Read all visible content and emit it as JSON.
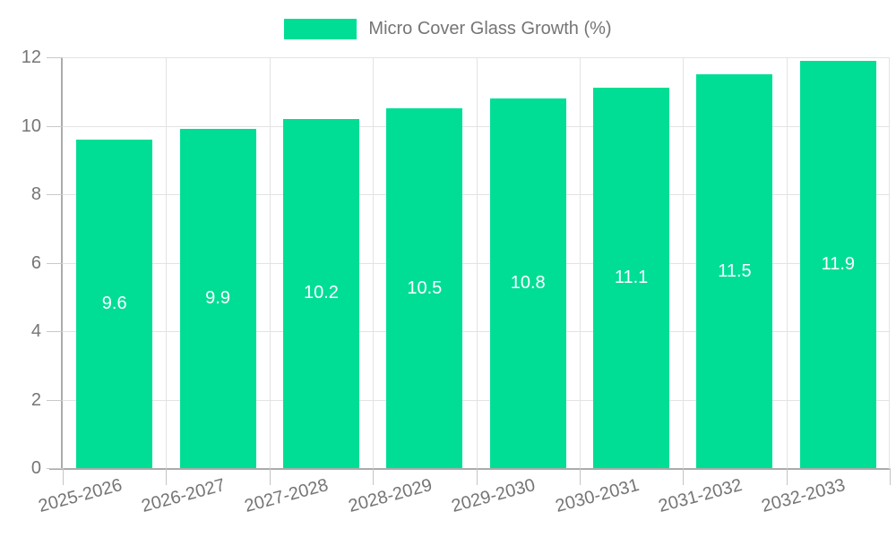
{
  "legend": {
    "label": "Micro Cover Glass Growth (%)"
  },
  "chart_data": {
    "type": "bar",
    "title": "Micro Cover Glass Growth (%)",
    "categories": [
      "2025-2026",
      "2026-2027",
      "2027-2028",
      "2028-2029",
      "2029-2030",
      "2030-2031",
      "2031-2032",
      "2032-2033"
    ],
    "values": [
      9.6,
      9.9,
      10.2,
      10.5,
      10.8,
      11.1,
      11.5,
      11.9
    ],
    "bar_value_labels": [
      "9.6",
      "9.9",
      "10.2",
      "10.5",
      "10.8",
      "11.1",
      "11.5",
      "11.9"
    ],
    "xlabel": "",
    "ylabel": "",
    "ylim": [
      0,
      12
    ],
    "yticks": [
      0,
      2,
      4,
      6,
      8,
      10,
      12
    ],
    "grid": true,
    "legend_position": "top",
    "colors": {
      "bar": "#00DE95",
      "grid": "#E3E3E3",
      "axis": "#ABABAB",
      "tick_text": "#757575",
      "legend_text": "#757575",
      "bar_label_text": "#FFFFFF"
    }
  }
}
